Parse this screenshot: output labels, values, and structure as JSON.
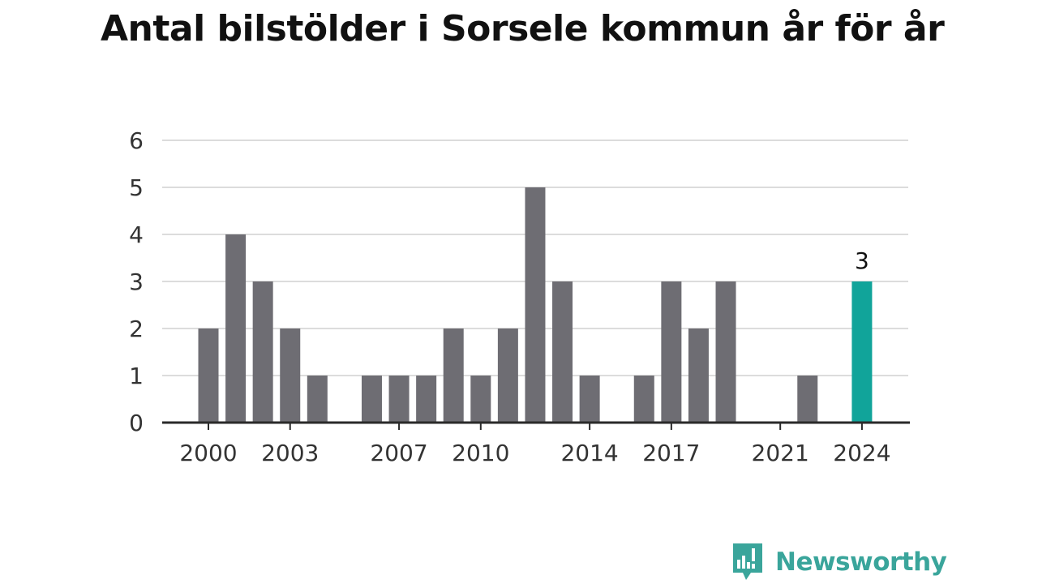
{
  "page": {
    "title": "Antal bilstölder i Sorsele kommun år för år"
  },
  "brand": {
    "name": "Newsworthy",
    "icon": "newsworthy-logo-icon",
    "color": "#3aa59b"
  },
  "colors": {
    "bar": "#6e6d73",
    "highlight": "#11a49a",
    "grid": "#dcdcdc",
    "axis": "#2a2a2a",
    "text": "#333333"
  },
  "chart_data": {
    "type": "bar",
    "title": "Antal bilstölder i Sorsele kommun år för år",
    "xlabel": "",
    "ylabel": "",
    "ylim": [
      0,
      6
    ],
    "yticks": [
      "0",
      "1",
      "2",
      "3",
      "4",
      "5",
      "6"
    ],
    "xtick_labels": [
      "2000",
      "2003",
      "2007",
      "2010",
      "2014",
      "2017",
      "2021",
      "2024"
    ],
    "categories": [
      "2000",
      "2001",
      "2002",
      "2003",
      "2004",
      "2005",
      "2006",
      "2007",
      "2008",
      "2009",
      "2010",
      "2011",
      "2012",
      "2013",
      "2014",
      "2015",
      "2016",
      "2017",
      "2018",
      "2019",
      "2020",
      "2021",
      "2022",
      "2023",
      "2024"
    ],
    "values": [
      2,
      4,
      3,
      2,
      1,
      0,
      1,
      1,
      1,
      2,
      1,
      2,
      5,
      3,
      1,
      0,
      1,
      3,
      2,
      3,
      0,
      0,
      1,
      0,
      3
    ],
    "highlight": {
      "category": "2024",
      "label": "3"
    },
    "grid": true,
    "legend": "none"
  }
}
